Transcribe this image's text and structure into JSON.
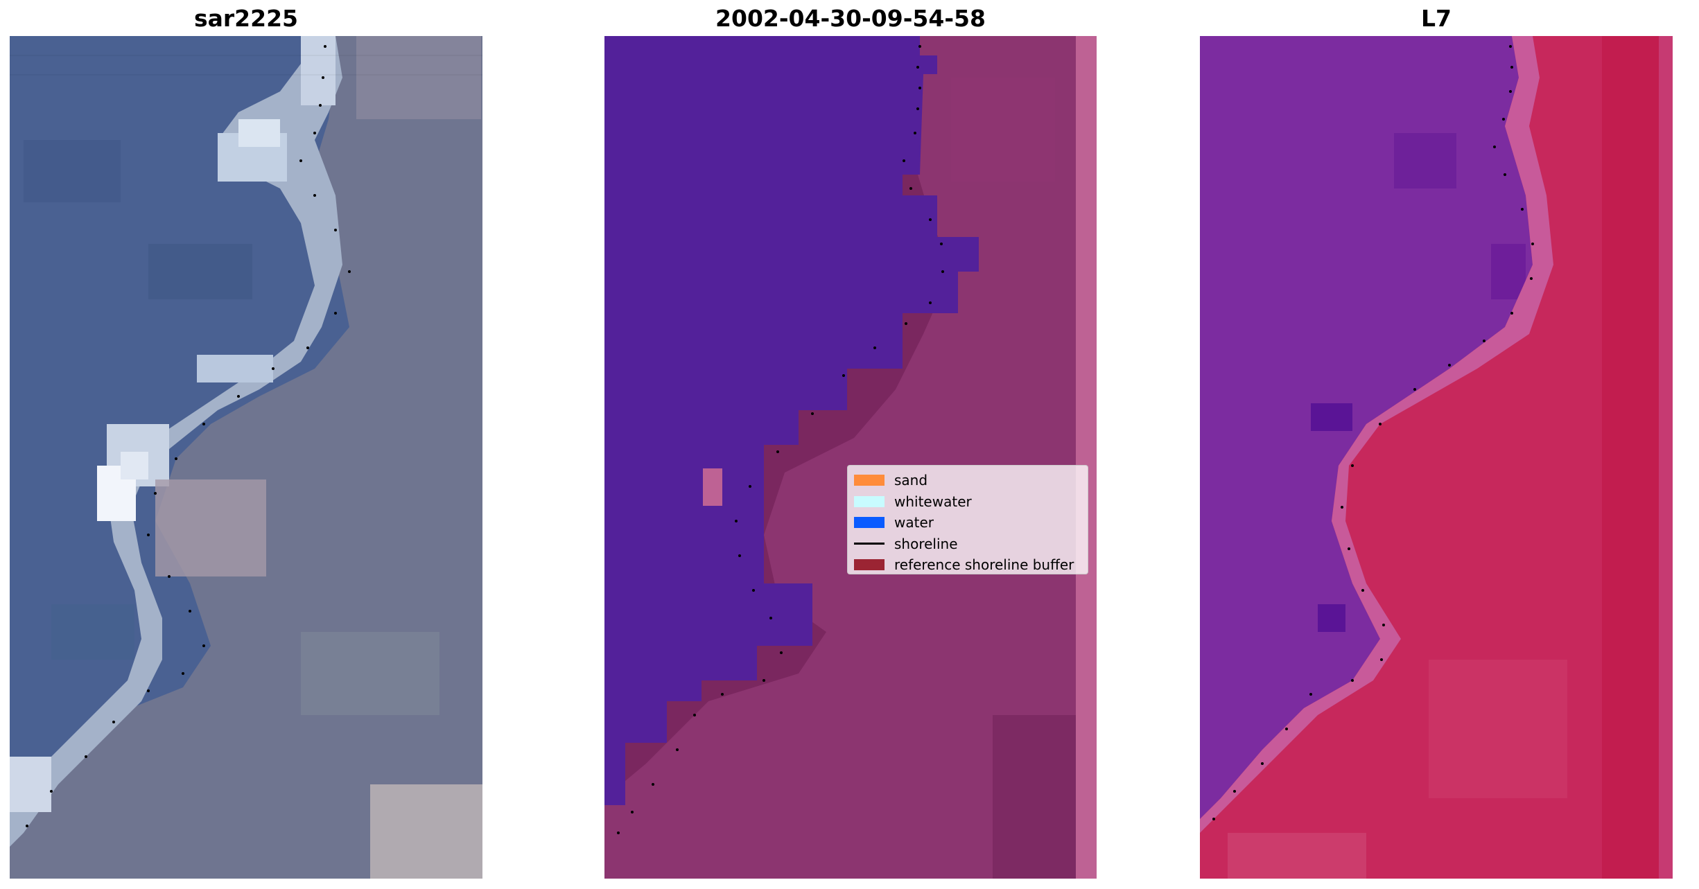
{
  "panels": {
    "left": {
      "title": "sar2225"
    },
    "middle": {
      "title": "2002-04-30-09-54-58"
    },
    "right": {
      "title": "L7"
    }
  },
  "legend": {
    "items": [
      {
        "label": "sand",
        "kind": "patch",
        "color": "#ff8c3b"
      },
      {
        "label": "whitewater",
        "kind": "patch",
        "color": "#c8fbff"
      },
      {
        "label": "water",
        "kind": "patch",
        "color": "#0a5bff"
      },
      {
        "label": "shoreline",
        "kind": "line",
        "color": "#000000"
      },
      {
        "label": "reference shoreline buffer",
        "kind": "patch",
        "color": "#9b2433"
      }
    ]
  },
  "colors": {
    "rgb_water": "#4a6191",
    "rgb_land": "#6e7591",
    "rgb_whitewater": "#d9e4f2",
    "class_water": "#53219a",
    "class_land": "#7a275f",
    "class_buffer_edge": "#be6294",
    "index_water": "#7c2ca0",
    "index_land": "#c72658",
    "shoreline_dots": "#000000"
  }
}
